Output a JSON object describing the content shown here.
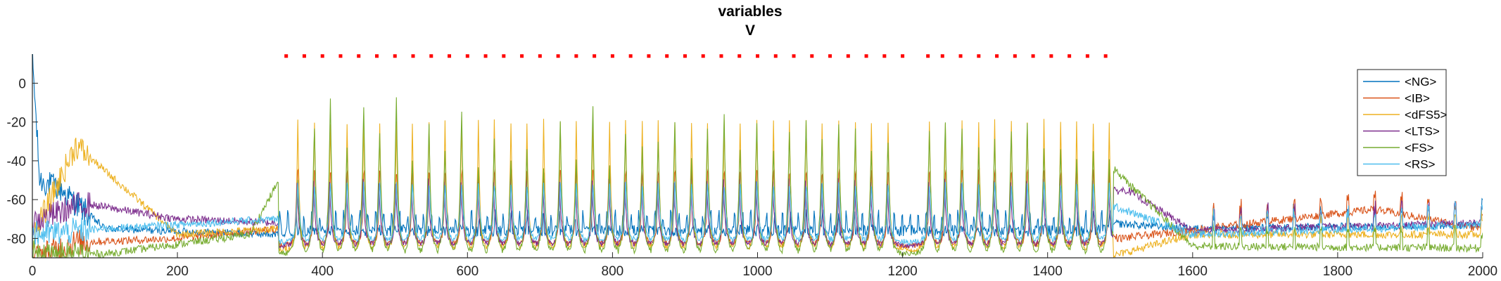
{
  "chart_data": {
    "type": "line",
    "title": "variables",
    "subtitle": "V",
    "xlabel": "",
    "ylabel": "",
    "xlim": [
      0,
      2000
    ],
    "ylim": [
      -90,
      15
    ],
    "xticks": [
      0,
      200,
      400,
      600,
      800,
      1000,
      1200,
      1400,
      1600,
      1800,
      2000
    ],
    "yticks": [
      0,
      -20,
      -40,
      -60,
      -80
    ],
    "grid": false,
    "legend_position": "top-right",
    "series": [
      {
        "name": "<NG>",
        "color": "#0072BD",
        "baseline": -75,
        "peak": -62,
        "phase": 0.0,
        "burst": 0.25,
        "points": [
          [
            0,
            14
          ],
          [
            10,
            -50
          ],
          [
            40,
            -55
          ],
          [
            60,
            -62
          ],
          [
            100,
            -75
          ],
          [
            340,
            -78
          ],
          [
            1000,
            -73
          ],
          [
            1480,
            -72
          ],
          [
            1600,
            -75
          ],
          [
            2000,
            -73
          ]
        ]
      },
      {
        "name": "<IB>",
        "color": "#D95319",
        "baseline": -84,
        "peak": -40,
        "phase": 0.05,
        "burst": 0.15,
        "points": [
          [
            0,
            -90
          ],
          [
            60,
            -82
          ],
          [
            200,
            -80
          ],
          [
            340,
            -75
          ],
          [
            380,
            -40
          ],
          [
            1250,
            -55
          ],
          [
            1500,
            -80
          ],
          [
            1850,
            -65
          ],
          [
            2000,
            -75
          ]
        ]
      },
      {
        "name": "<dFS5>",
        "color": "#EDB120",
        "baseline": -86,
        "peak": -25,
        "phase": 0.1,
        "burst": 0.3,
        "points": [
          [
            0,
            -80
          ],
          [
            60,
            -32
          ],
          [
            200,
            -78
          ],
          [
            340,
            -75
          ],
          [
            1300,
            -20
          ],
          [
            1480,
            -90
          ],
          [
            1600,
            -78
          ],
          [
            2000,
            -78
          ]
        ]
      },
      {
        "name": "<LTS>",
        "color": "#7E2F8E",
        "baseline": -84,
        "peak": -55,
        "phase": 0.2,
        "burst": 0.2,
        "points": [
          [
            0,
            -72
          ],
          [
            70,
            -62
          ],
          [
            200,
            -70
          ],
          [
            340,
            -72
          ],
          [
            1000,
            -72
          ],
          [
            1510,
            -55
          ],
          [
            1600,
            -76
          ],
          [
            2000,
            -72
          ]
        ]
      },
      {
        "name": "<FS>",
        "color": "#77AC30",
        "baseline": -88,
        "peak": -10,
        "phase": 0.12,
        "burst": 0.4,
        "points": [
          [
            0,
            -88
          ],
          [
            100,
            -88
          ],
          [
            300,
            -78
          ],
          [
            400,
            -8
          ],
          [
            500,
            -8
          ],
          [
            800,
            -12
          ],
          [
            1480,
            -40
          ],
          [
            1600,
            -84
          ],
          [
            2000,
            -85
          ]
        ]
      },
      {
        "name": "<RS>",
        "color": "#4DBEEE",
        "baseline": -82,
        "peak": -55,
        "phase": 0.08,
        "burst": 0.35,
        "points": [
          [
            0,
            -78
          ],
          [
            100,
            -75
          ],
          [
            340,
            -70
          ],
          [
            1000,
            -60
          ],
          [
            1480,
            -62
          ],
          [
            1600,
            -78
          ],
          [
            2000,
            -73
          ]
        ]
      }
    ],
    "event_markers": {
      "color": "#FF0000",
      "y": 14,
      "x": [
        350,
        375,
        400,
        425,
        450,
        475,
        500,
        525,
        550,
        575,
        600,
        625,
        650,
        675,
        700,
        725,
        750,
        775,
        800,
        825,
        850,
        875,
        900,
        925,
        950,
        975,
        1000,
        1025,
        1050,
        1075,
        1100,
        1125,
        1150,
        1175,
        1200,
        1235,
        1255,
        1280,
        1305,
        1330,
        1355,
        1380,
        1405,
        1430,
        1455,
        1480
      ]
    },
    "spike_times": [
      367,
      390,
      412,
      435,
      458,
      480,
      503,
      525,
      548,
      570,
      593,
      616,
      638,
      661,
      683,
      706,
      729,
      751,
      774,
      797,
      819,
      842,
      864,
      887,
      910,
      932,
      955,
      977,
      1000,
      1023,
      1045,
      1068,
      1090,
      1113,
      1136,
      1158,
      1181,
      1238,
      1260,
      1283,
      1306,
      1328,
      1351,
      1373,
      1396,
      1419,
      1441,
      1464,
      1486
    ],
    "spike_peaks_FS": [
      -52,
      -22,
      -8,
      -35,
      -10,
      -25,
      -7,
      -40,
      -20,
      -35,
      -15,
      -45,
      -30,
      -40,
      -35,
      -45,
      -20,
      -40,
      -12,
      -45,
      -25,
      -35,
      -30,
      -20,
      -40,
      -25,
      -15,
      -35,
      -20,
      -35,
      -25,
      -20,
      -30,
      -20,
      -25,
      -35,
      -30,
      -25,
      -20,
      -22,
      -35,
      -30,
      -25,
      -20,
      -35,
      -35,
      -40,
      -35,
      -40
    ]
  }
}
